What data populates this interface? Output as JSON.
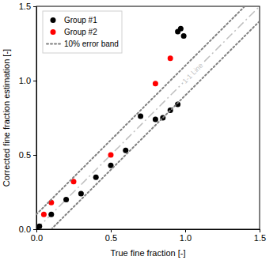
{
  "chart_data": {
    "type": "scatter",
    "x_label": "True fine fraction [-]",
    "y_label": "Corrected fine fraction estimation [-]",
    "xlim": [
      0,
      1.5
    ],
    "ylim": [
      0,
      1.5
    ],
    "xticks": [
      {
        "value": 0,
        "label": "0.0"
      },
      0.5,
      {
        "value": 1,
        "label": "1.0"
      },
      1.5
    ],
    "yticks": [
      {
        "value": 0,
        "label": "0.0"
      },
      0.5,
      {
        "value": 1,
        "label": "1.0"
      },
      1.5
    ],
    "grid": false,
    "legend": "upper left",
    "series": [
      {
        "name": "Group #1",
        "type": "scatter",
        "color": "#000000",
        "marker": "circle",
        "x": [
          0.0,
          0.02,
          0.1,
          0.2,
          0.3,
          0.4,
          0.5,
          0.6,
          0.7,
          0.8,
          0.85,
          0.9,
          0.95,
          0.95,
          0.97,
          0.99
        ],
        "values": [
          0.0,
          0.02,
          0.1,
          0.2,
          0.24,
          0.35,
          0.43,
          0.53,
          0.76,
          0.74,
          0.75,
          0.8,
          0.84,
          1.33,
          1.35,
          1.3
        ]
      },
      {
        "name": "Group #2",
        "type": "scatter",
        "color": "#ff0000",
        "marker": "circle",
        "x": [
          0.05,
          0.1,
          0.25,
          0.5,
          0.8,
          0.9
        ],
        "values": [
          0.1,
          0.18,
          0.32,
          0.5,
          0.98,
          1.15
        ]
      },
      {
        "name": "10% error band",
        "type": "line",
        "color": "#808080",
        "line_style": "dotted",
        "x": [
          0,
          1.4,
          0.1,
          0.1,
          1.5
        ],
        "values": [
          0.1,
          1.5,
          null,
          0,
          1.4
        ]
      }
    ],
    "reference_line": {
      "label": "1-1 Line",
      "color": "#bfbfbf",
      "line_style": "dashdot",
      "x": [
        0,
        1.5
      ],
      "values": [
        0,
        1.5
      ]
    }
  }
}
